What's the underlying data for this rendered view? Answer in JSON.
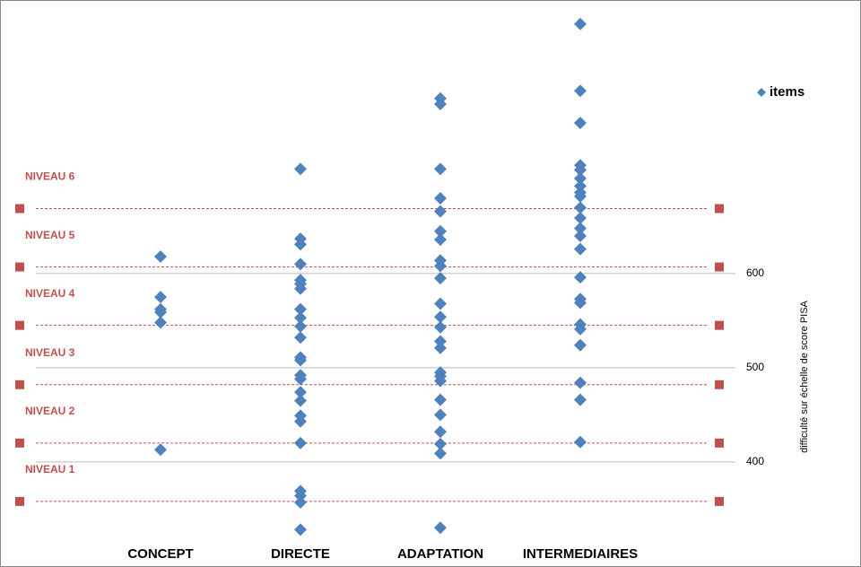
{
  "chart_data": {
    "type": "scatter",
    "y_axis_label": "difficulté sur échelle de score PISA",
    "categories": [
      "CONCEPT",
      "DIRECTE",
      "ADAPTATION",
      "INTERMEDIAIRES"
    ],
    "series": [
      {
        "name": "items",
        "color": "#4f81bd",
        "values": [
          [
            618,
            575,
            562,
            559,
            548,
            413
          ],
          [
            711,
            637,
            631,
            610,
            593,
            589,
            584,
            562,
            553,
            544,
            532,
            511,
            508,
            492,
            488,
            474,
            465,
            449,
            443,
            420,
            369,
            364,
            357,
            328
          ],
          [
            786,
            780,
            711,
            680,
            666,
            645,
            636,
            614,
            608,
            595,
            568,
            554,
            543,
            528,
            521,
            495,
            491,
            486,
            466,
            450,
            432,
            419,
            409,
            330
          ],
          [
            865,
            794,
            760,
            715,
            710,
            701,
            693,
            686,
            682,
            670,
            659,
            648,
            640,
            626,
            596,
            573,
            569,
            546,
            541,
            524,
            484,
            466,
            421
          ]
        ]
      }
    ],
    "levels": [
      {
        "label": "NIVEAU 1",
        "value": 358
      },
      {
        "label": "NIVEAU 2",
        "value": 420
      },
      {
        "label": "NIVEAU 3",
        "value": 482
      },
      {
        "label": "NIVEAU 4",
        "value": 545
      },
      {
        "label": "NIVEAU 5",
        "value": 607
      },
      {
        "label": "NIVEAU 6",
        "value": 669
      }
    ],
    "level_color": "#c0504d",
    "ylim": [
      316,
      881
    ],
    "yticks": [
      400,
      500,
      600
    ],
    "grid": true,
    "legend": "top-right"
  }
}
